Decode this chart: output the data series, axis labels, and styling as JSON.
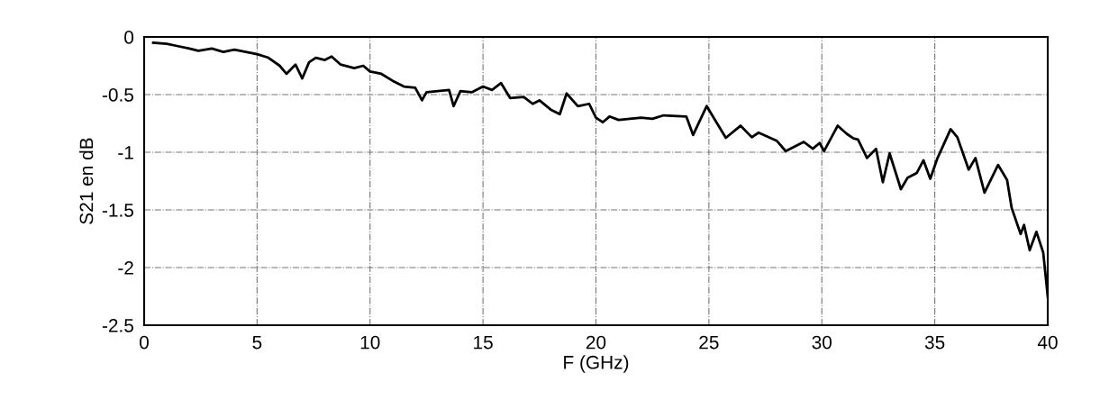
{
  "chart_data": {
    "type": "line",
    "xlabel": "F (GHz)",
    "ylabel": "S21 en dB",
    "xlim": [
      0,
      40
    ],
    "ylim": [
      -2.5,
      0
    ],
    "xticks": [
      0,
      5,
      10,
      15,
      20,
      25,
      30,
      35,
      40
    ],
    "yticks": [
      {
        "value": 0,
        "label": "0"
      },
      {
        "value": -0.5,
        "label": "-0.5"
      },
      {
        "value": -1,
        "label": "-1"
      },
      {
        "value": -1.5,
        "label": "-1.5"
      },
      {
        "value": -2,
        "label": "-2"
      },
      {
        "value": -2.5,
        "label": "-2.5"
      }
    ],
    "grid": true,
    "line_style": "solid",
    "marker": "none",
    "series": [
      {
        "color": "#000000",
        "x": [
          0.4,
          1,
          1.5,
          2,
          2.4,
          3,
          3.5,
          4,
          5,
          5.5,
          6,
          6.3,
          6.7,
          7,
          7.3,
          7.6,
          8,
          8.3,
          8.7,
          9.3,
          9.7,
          10,
          10.5,
          11,
          11.5,
          12,
          12.3,
          12.5,
          13,
          13.5,
          13.7,
          14,
          14.5,
          15,
          15.4,
          15.8,
          16.2,
          16.8,
          17.2,
          17.5,
          18,
          18.4,
          18.7,
          19.2,
          19.7,
          20,
          20.3,
          20.6,
          21,
          22,
          22.5,
          23,
          24,
          24.3,
          24.9,
          25.75,
          26.4,
          26.9,
          27.2,
          28,
          28.4,
          29.2,
          29.6,
          29.9,
          30.1,
          30.7,
          31.1,
          31.4,
          31.6,
          32,
          32.4,
          32.7,
          33,
          33.5,
          33.8,
          34.2,
          34.5,
          34.8,
          35.1,
          35.7,
          36,
          36.5,
          36.8,
          37.2,
          37.8,
          38.2,
          38.4,
          38.8,
          38.95,
          39.2,
          39.5,
          39.8,
          40
        ],
        "values": [
          -0.05,
          -0.06,
          -0.08,
          -0.1,
          -0.12,
          -0.1,
          -0.13,
          -0.11,
          -0.15,
          -0.18,
          -0.25,
          -0.32,
          -0.24,
          -0.36,
          -0.22,
          -0.18,
          -0.2,
          -0.17,
          -0.24,
          -0.27,
          -0.25,
          -0.3,
          -0.32,
          -0.38,
          -0.43,
          -0.44,
          -0.55,
          -0.48,
          -0.47,
          -0.46,
          -0.6,
          -0.47,
          -0.48,
          -0.43,
          -0.46,
          -0.4,
          -0.53,
          -0.52,
          -0.58,
          -0.55,
          -0.63,
          -0.67,
          -0.49,
          -0.6,
          -0.58,
          -0.7,
          -0.74,
          -0.69,
          -0.72,
          -0.7,
          -0.71,
          -0.68,
          -0.69,
          -0.85,
          -0.6,
          -0.875,
          -0.77,
          -0.87,
          -0.83,
          -0.9,
          -0.99,
          -0.91,
          -0.97,
          -0.92,
          -0.99,
          -0.77,
          -0.84,
          -0.88,
          -0.89,
          -1.05,
          -0.97,
          -1.26,
          -1.01,
          -1.32,
          -1.22,
          -1.18,
          -1.07,
          -1.23,
          -1.06,
          -0.8,
          -0.87,
          -1.15,
          -1.05,
          -1.35,
          -1.11,
          -1.24,
          -1.48,
          -1.71,
          -1.63,
          -1.85,
          -1.69,
          -1.87,
          -2.25
        ]
      }
    ]
  }
}
